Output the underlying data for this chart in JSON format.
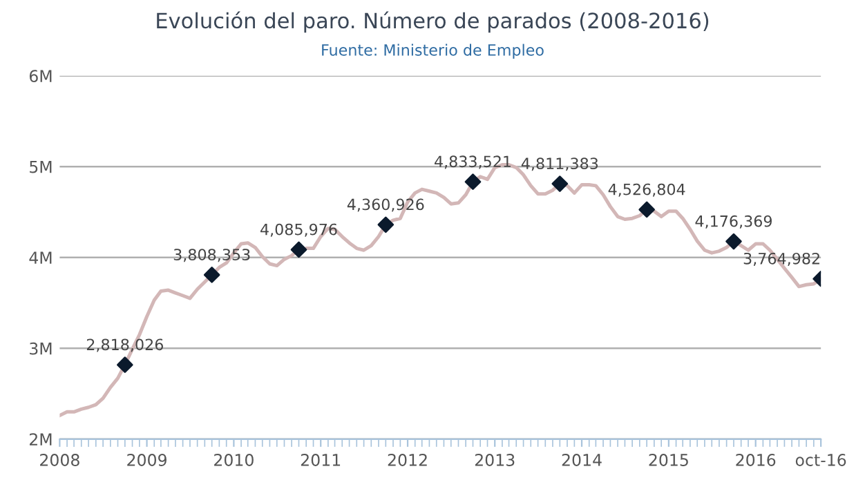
{
  "chart_data": {
    "type": "line",
    "title": "Evolución del paro. Número de parados (2008-2016)",
    "subtitle": "Fuente: Ministerio de Empleo",
    "x": [
      "2008-01",
      "2008-02",
      "2008-03",
      "2008-04",
      "2008-05",
      "2008-06",
      "2008-07",
      "2008-08",
      "2008-09",
      "2008-10",
      "2008-11",
      "2008-12",
      "2009-01",
      "2009-02",
      "2009-03",
      "2009-04",
      "2009-05",
      "2009-06",
      "2009-07",
      "2009-08",
      "2009-09",
      "2009-10",
      "2009-11",
      "2009-12",
      "2010-01",
      "2010-02",
      "2010-03",
      "2010-04",
      "2010-05",
      "2010-06",
      "2010-07",
      "2010-08",
      "2010-09",
      "2010-10",
      "2010-11",
      "2010-12",
      "2011-01",
      "2011-02",
      "2011-03",
      "2011-04",
      "2011-05",
      "2011-06",
      "2011-07",
      "2011-08",
      "2011-09",
      "2011-10",
      "2011-11",
      "2011-12",
      "2012-01",
      "2012-02",
      "2012-03",
      "2012-04",
      "2012-05",
      "2012-06",
      "2012-07",
      "2012-08",
      "2012-09",
      "2012-10",
      "2012-11",
      "2012-12",
      "2013-01",
      "2013-02",
      "2013-03",
      "2013-04",
      "2013-05",
      "2013-06",
      "2013-07",
      "2013-08",
      "2013-09",
      "2013-10",
      "2013-11",
      "2013-12",
      "2014-01",
      "2014-02",
      "2014-03",
      "2014-04",
      "2014-05",
      "2014-06",
      "2014-07",
      "2014-08",
      "2014-09",
      "2014-10",
      "2014-11",
      "2014-12",
      "2015-01",
      "2015-02",
      "2015-03",
      "2015-04",
      "2015-05",
      "2015-06",
      "2015-07",
      "2015-08",
      "2015-09",
      "2015-10",
      "2015-11",
      "2015-12",
      "2016-01",
      "2016-02",
      "2016-03",
      "2016-04",
      "2016-05",
      "2016-06",
      "2016-07",
      "2016-08",
      "2016-09",
      "2016-10"
    ],
    "series": [
      {
        "color": "#d3b7b7",
        "marker": "none",
        "values": [
          2260000,
          2300000,
          2300000,
          2330000,
          2350000,
          2380000,
          2450000,
          2570000,
          2670000,
          2820000,
          2990000,
          3150000,
          3350000,
          3530000,
          3630000,
          3640000,
          3610000,
          3580000,
          3550000,
          3650000,
          3730000,
          3810000,
          3890000,
          3940000,
          4050000,
          4150000,
          4160000,
          4110000,
          4010000,
          3930000,
          3910000,
          3980000,
          4020000,
          4090000,
          4100000,
          4100000,
          4230000,
          4320000,
          4310000,
          4230000,
          4160000,
          4100000,
          4080000,
          4130000,
          4230000,
          4360000,
          4410000,
          4430000,
          4610000,
          4710000,
          4750000,
          4730000,
          4710000,
          4660000,
          4590000,
          4600000,
          4690000,
          4830000,
          4890000,
          4860000,
          4990000,
          5020000,
          5020000,
          4990000,
          4910000,
          4790000,
          4700000,
          4700000,
          4740000,
          4810000,
          4790000,
          4710000,
          4800000,
          4800000,
          4790000,
          4690000,
          4560000,
          4450000,
          4420000,
          4430000,
          4460000,
          4530000,
          4510000,
          4450000,
          4510000,
          4510000,
          4430000,
          4310000,
          4180000,
          4080000,
          4050000,
          4070000,
          4110000,
          4180000,
          4130000,
          4080000,
          4150000,
          4150000,
          4080000,
          3980000,
          3880000,
          3780000,
          3680000,
          3700000,
          3710000,
          3760000
        ]
      },
      {
        "type": "scatter",
        "color": "#0b1a2c",
        "marker": "diamond",
        "value_labels": [
          "2,818,026",
          "3,808,353",
          "4,085,976",
          "4,360,926",
          "4,833,521",
          "4,811,383",
          "4,526,804",
          "4,176,369",
          "3,764,982"
        ],
        "x": [
          "2008-10",
          "2009-10",
          "2010-10",
          "2011-10",
          "2012-10",
          "2013-10",
          "2014-10",
          "2015-10",
          "2016-10"
        ],
        "values": [
          2818026,
          3808353,
          4085976,
          4360926,
          4833521,
          4811383,
          4526804,
          4176369,
          3764982
        ]
      }
    ],
    "xlim": [
      "2008-01",
      "2016-10"
    ],
    "xticks": [
      {
        "value": "2008-01",
        "label": "2008"
      },
      {
        "value": "2009-01",
        "label": "2009"
      },
      {
        "value": "2010-01",
        "label": "2010"
      },
      {
        "value": "2011-01",
        "label": "2011"
      },
      {
        "value": "2012-01",
        "label": "2012"
      },
      {
        "value": "2013-01",
        "label": "2013"
      },
      {
        "value": "2014-01",
        "label": "2014"
      },
      {
        "value": "2015-01",
        "label": "2015"
      },
      {
        "value": "2016-01",
        "label": "2016"
      },
      {
        "value": "2016-10",
        "label": "oct-16"
      }
    ],
    "ylim": [
      2000000,
      6000000
    ],
    "yticks": [
      {
        "value": 2000000,
        "label": "2M"
      },
      {
        "value": 3000000,
        "label": "3M"
      },
      {
        "value": 4000000,
        "label": "4M"
      },
      {
        "value": 5000000,
        "label": "5M"
      },
      {
        "value": 6000000,
        "label": "6M"
      }
    ],
    "grid": "y",
    "legend": false
  }
}
